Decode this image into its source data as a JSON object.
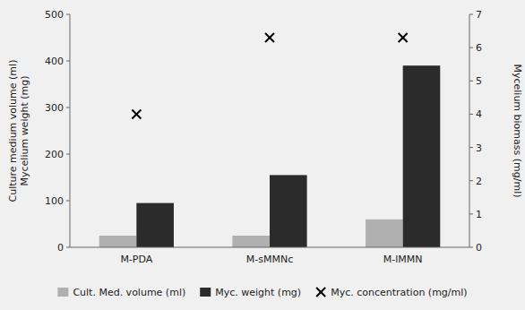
{
  "chart_data": {
    "type": "bar",
    "categories": [
      "M-PDA",
      "M-sMMNc",
      "M-lMMN"
    ],
    "series": [
      {
        "name": "Cult. Med. volume (ml)",
        "color": "#b0b0b0",
        "values": [
          25,
          25,
          60
        ]
      },
      {
        "name": "Myc. weight (mg)",
        "color": "#2b2b2b",
        "values": [
          95,
          155,
          390
        ]
      },
      {
        "name": "Myc. concentration (mg/ml)",
        "color": "#000000",
        "values": [
          4.0,
          6.3,
          6.3
        ],
        "axis": "y2",
        "type": "scatter",
        "marker": "x"
      }
    ],
    "y_label": "Culture medium volume (ml)\nMycelium weight (mg)",
    "y2_label": "Mycelium biomass (mg/ml)",
    "ylim": [
      0,
      500
    ],
    "yticks": [
      0,
      100,
      200,
      300,
      400,
      500
    ],
    "y2lim": [
      0,
      7
    ],
    "y2ticks": [
      0,
      1,
      2,
      3,
      4,
      5,
      6,
      7
    ],
    "grid": false,
    "legend": "bottom"
  }
}
